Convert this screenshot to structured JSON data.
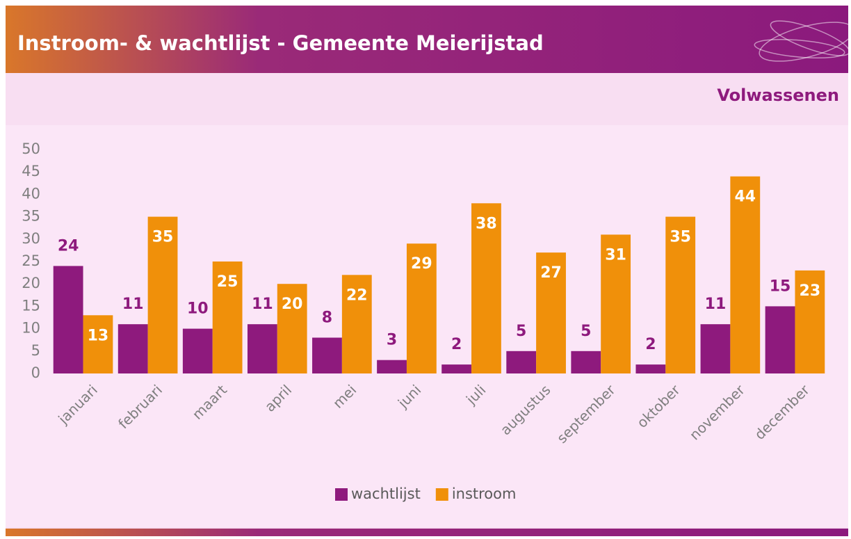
{
  "chart_data": {
    "type": "bar",
    "title": "Instroom- & wachtlijst - Gemeente Meierijstad",
    "subtitle": "Volwassenen",
    "categories": [
      "januari",
      "februari",
      "maart",
      "april",
      "mei",
      "juni",
      "juli",
      "augustus",
      "september",
      "oktober",
      "november",
      "december"
    ],
    "series": [
      {
        "name": "wachtlijst",
        "color": "#8e1a7d",
        "values": [
          24,
          11,
          10,
          11,
          8,
          3,
          2,
          5,
          5,
          2,
          11,
          15
        ]
      },
      {
        "name": "instroom",
        "color": "#f0900a",
        "values": [
          13,
          35,
          25,
          20,
          22,
          29,
          38,
          27,
          31,
          35,
          44,
          23
        ]
      }
    ],
    "ylim": [
      0,
      50
    ],
    "yticks": [
      0,
      5,
      10,
      15,
      20,
      25,
      30,
      35,
      40,
      45,
      50
    ],
    "grid": false,
    "legend": "bottom"
  }
}
